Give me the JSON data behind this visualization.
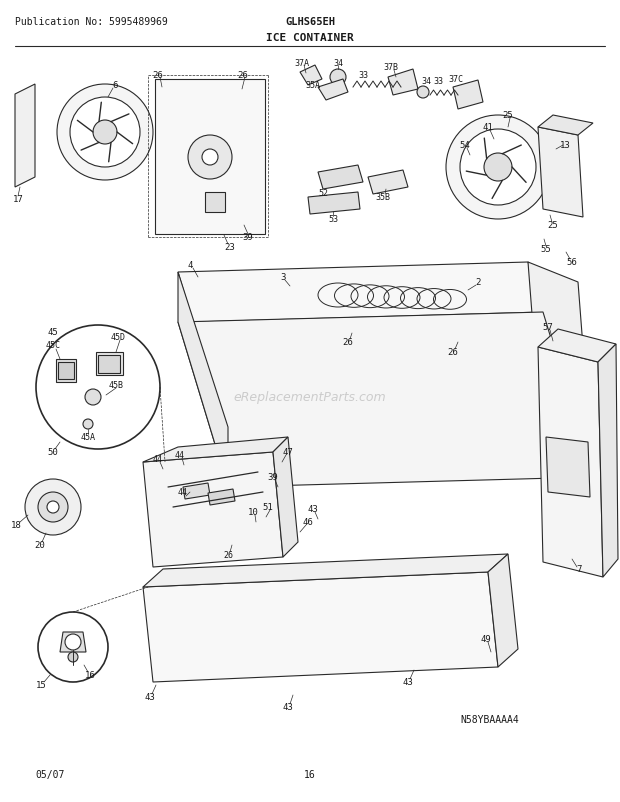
{
  "title": "ICE CONTAINER",
  "publication": "Publication No: 5995489969",
  "model": "GLHS65EH",
  "diagram_id": "N58YBAAAA4",
  "date": "05/07",
  "page": "16",
  "bg_color": "#ffffff",
  "line_color": "#2a2a2a",
  "text_color": "#1a1a1a",
  "fig_width": 6.2,
  "fig_height": 8.03
}
